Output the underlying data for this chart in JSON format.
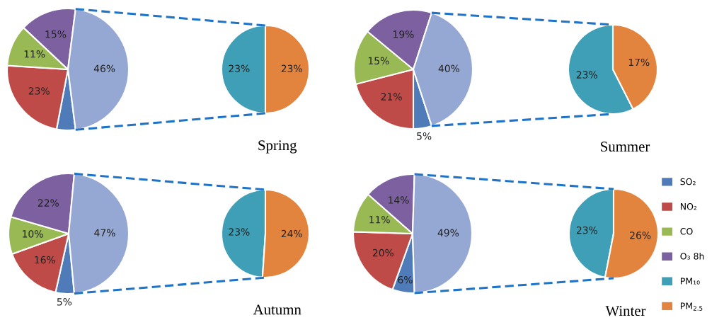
{
  "chart_data": [
    {
      "type": "pie",
      "legend": "right",
      "categories": [
        "SO₂",
        "NO₂",
        "CO",
        "O₃ 8h",
        null
      ],
      "values": [
        5,
        23,
        11,
        15,
        46
      ],
      "colors": [
        "#4f7bb8",
        "#be4b48",
        "#98b954",
        "#7d60a0",
        "#95a8d4"
      ],
      "value_labels": [
        null,
        "23%",
        "11%",
        "15%",
        "46%"
      ]
    },
    {
      "type": "pie",
      "title": "Spring",
      "legend": "right",
      "categories": [
        "PM₁₀",
        "PM$_{2.5}$"
      ],
      "values": [
        23,
        23
      ],
      "colors": [
        "#3f9fb6",
        "#e2843e"
      ],
      "value_labels": [
        "23%",
        "23%"
      ]
    },
    {
      "type": "pie",
      "categories": [
        null,
        null,
        null,
        null,
        null
      ],
      "values": [
        5,
        21,
        15,
        19,
        40
      ],
      "colors": [
        "#4f7bb8",
        "#be4b48",
        "#98b954",
        "#7d60a0",
        "#95a8d4"
      ],
      "value_labels": [
        "5%",
        "21%",
        "15%",
        "19%",
        "40%"
      ]
    },
    {
      "type": "pie",
      "title": "Summer",
      "categories": [
        null,
        null
      ],
      "values": [
        23,
        17
      ],
      "colors": [
        "#3f9fb6",
        "#e2843e"
      ],
      "value_labels": [
        "23%",
        "17%"
      ]
    },
    {
      "type": "pie",
      "categories": [
        null,
        null,
        null,
        null,
        null
      ],
      "values": [
        5,
        16,
        10,
        22,
        47
      ],
      "colors": [
        "#4f7bb8",
        "#be4b48",
        "#98b954",
        "#7d60a0",
        "#95a8d4"
      ],
      "value_labels": [
        "5%",
        "16%",
        "10%",
        "22%",
        "47%"
      ]
    },
    {
      "type": "pie",
      "title": "Autumn",
      "categories": [
        null,
        null
      ],
      "values": [
        23,
        24
      ],
      "colors": [
        "#3f9fb6",
        "#e2843e"
      ],
      "value_labels": [
        "23%",
        "24%"
      ]
    },
    {
      "type": "pie",
      "categories": [
        null,
        null,
        null,
        null,
        null
      ],
      "values": [
        6,
        20,
        11,
        14,
        49
      ],
      "colors": [
        "#4f7bb8",
        "#be4b48",
        "#98b954",
        "#7d60a0",
        "#95a8d4"
      ],
      "value_labels": [
        "6%",
        "20%",
        "11%",
        "14%",
        "49%"
      ]
    },
    {
      "type": "pie",
      "title": "Winter",
      "categories": [
        null,
        null
      ],
      "values": [
        23,
        26
      ],
      "colors": [
        "#3f9fb6",
        "#e2843e"
      ],
      "value_labels": [
        "23%",
        "26%"
      ]
    }
  ]
}
